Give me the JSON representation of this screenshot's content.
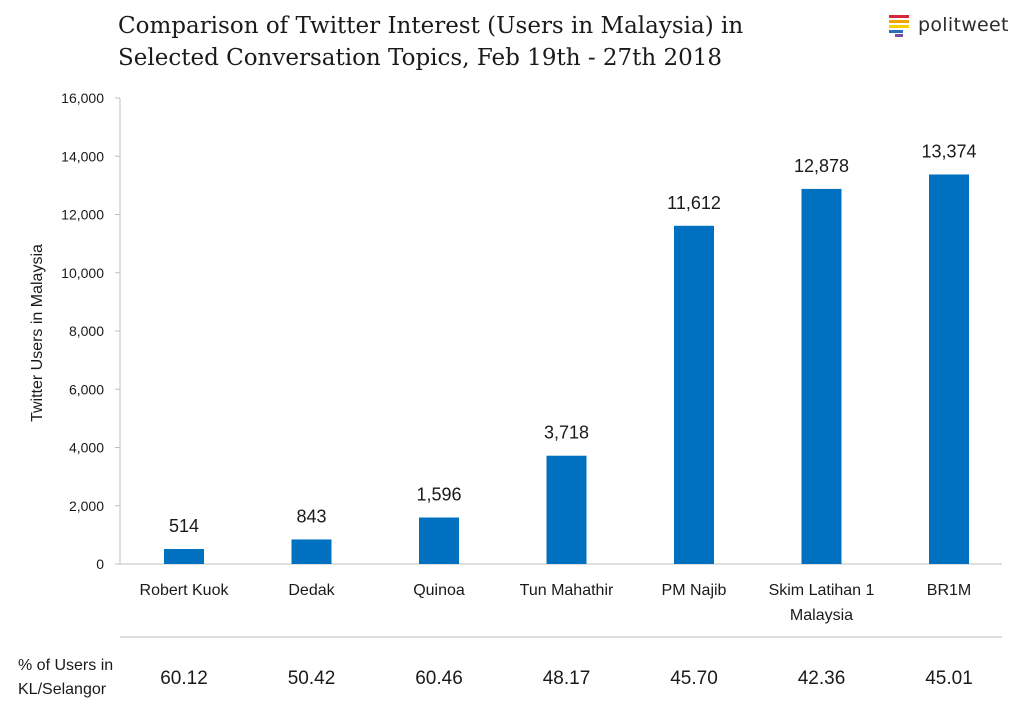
{
  "title_line1": "Comparison of Twitter Interest (Users in Malaysia) in",
  "title_line2": "Selected Conversation Topics, Feb 19th - 27th 2018",
  "logo": {
    "text": "politweet",
    "icon": "politweet-stripes-icon",
    "colors": [
      "#d7263d",
      "#f4a300",
      "#f7d000",
      "#2d6fb7",
      "#7b4fa0"
    ]
  },
  "footer": {
    "label_line1": "% of Users in",
    "label_line2": "KL/Selangor",
    "values": [
      "60.12",
      "50.42",
      "60.46",
      "48.17",
      "45.70",
      "42.36",
      "45.01"
    ]
  },
  "chart_data": {
    "type": "bar",
    "title": "Comparison of Twitter Interest (Users in Malaysia) in Selected Conversation Topics, Feb 19th - 27th 2018",
    "ylabel": "Twitter Users in Malaysia",
    "xlabel": "",
    "ylim": [
      0,
      16000
    ],
    "yticks": [
      "0",
      "2,000",
      "4,000",
      "6,000",
      "8,000",
      "10,000",
      "12,000",
      "14,000",
      "16,000"
    ],
    "categories": [
      [
        "Robert Kuok"
      ],
      [
        "Dedak"
      ],
      [
        "Quinoa"
      ],
      [
        "Tun Mahathir"
      ],
      [
        "PM Najib"
      ],
      [
        "Skim Latihan 1",
        "Malaysia"
      ],
      [
        "BR1M"
      ]
    ],
    "values": [
      514,
      843,
      1596,
      3718,
      11612,
      12878,
      13374
    ],
    "value_labels": [
      "514",
      "843",
      "1,596",
      "3,718",
      "11,612",
      "12,878",
      "13,374"
    ],
    "bar_color": "#0070c0",
    "grid": false,
    "legend": "none"
  }
}
